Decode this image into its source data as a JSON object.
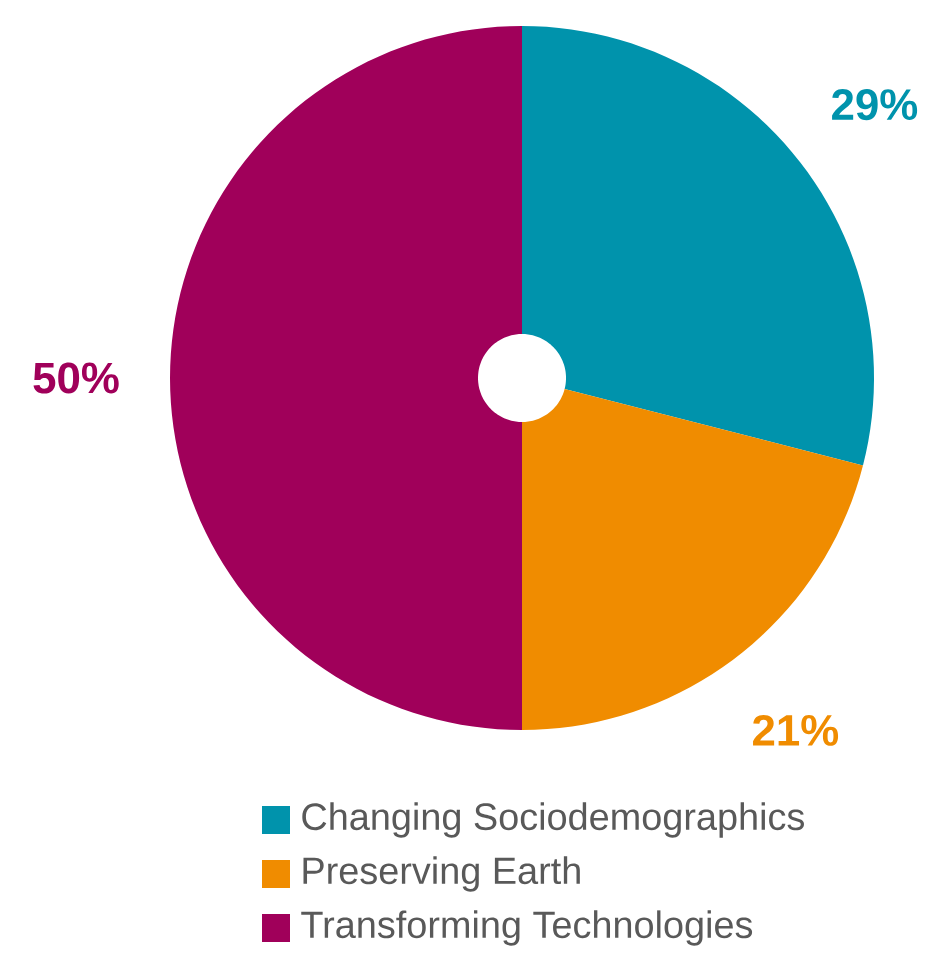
{
  "chart_data": {
    "type": "donut",
    "categories": [
      "Changing Sociodemographics",
      "Preserving Earth",
      "Transforming Technologies"
    ],
    "values": [
      29,
      21,
      50
    ],
    "colors": [
      "#0093ac",
      "#f08c00",
      "#a0005a"
    ],
    "value_labels": [
      "29%",
      "21%",
      "50%"
    ],
    "legend": "bottom"
  }
}
